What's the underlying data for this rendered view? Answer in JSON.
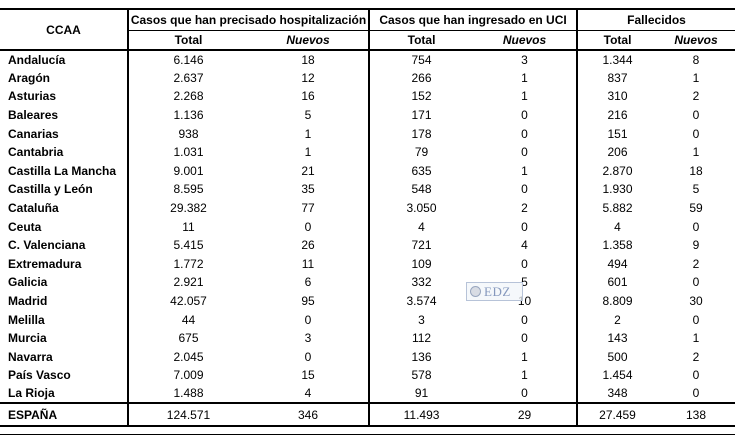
{
  "table": {
    "corner_label": "CCAA",
    "groups": [
      {
        "label": "Casos que han precisado hospitalización",
        "columns": [
          "Total",
          "Nuevos"
        ]
      },
      {
        "label": "Casos que han ingresado en UCI",
        "columns": [
          "Total",
          "Nuevos"
        ]
      },
      {
        "label": "Fallecidos",
        "columns": [
          "Total",
          "Nuevos"
        ]
      }
    ],
    "rows": [
      {
        "name": "Andalucía",
        "values": [
          "6.146",
          "18",
          "754",
          "3",
          "1.344",
          "8"
        ]
      },
      {
        "name": "Aragón",
        "values": [
          "2.637",
          "12",
          "266",
          "1",
          "837",
          "1"
        ]
      },
      {
        "name": "Asturias",
        "values": [
          "2.268",
          "16",
          "152",
          "1",
          "310",
          "2"
        ]
      },
      {
        "name": "Baleares",
        "values": [
          "1.136",
          "5",
          "171",
          "0",
          "216",
          "0"
        ]
      },
      {
        "name": "Canarias",
        "values": [
          "938",
          "1",
          "178",
          "0",
          "151",
          "0"
        ]
      },
      {
        "name": "Cantabria",
        "values": [
          "1.031",
          "1",
          "79",
          "0",
          "206",
          "1"
        ]
      },
      {
        "name": "Castilla La Mancha",
        "values": [
          "9.001",
          "21",
          "635",
          "1",
          "2.870",
          "18"
        ]
      },
      {
        "name": "Castilla y León",
        "values": [
          "8.595",
          "35",
          "548",
          "0",
          "1.930",
          "5"
        ]
      },
      {
        "name": "Cataluña",
        "values": [
          "29.382",
          "77",
          "3.050",
          "2",
          "5.882",
          "59"
        ]
      },
      {
        "name": "Ceuta",
        "values": [
          "11",
          "0",
          "4",
          "0",
          "4",
          "0"
        ]
      },
      {
        "name": "C. Valenciana",
        "values": [
          "5.415",
          "26",
          "721",
          "4",
          "1.358",
          "9"
        ]
      },
      {
        "name": "Extremadura",
        "values": [
          "1.772",
          "11",
          "109",
          "0",
          "494",
          "2"
        ]
      },
      {
        "name": "Galicia",
        "values": [
          "2.921",
          "6",
          "332",
          "5",
          "601",
          "0"
        ]
      },
      {
        "name": "Madrid",
        "values": [
          "42.057",
          "95",
          "3.574",
          "10",
          "8.809",
          "30"
        ]
      },
      {
        "name": "Melilla",
        "values": [
          "44",
          "0",
          "3",
          "0",
          "2",
          "0"
        ]
      },
      {
        "name": "Murcia",
        "values": [
          "675",
          "3",
          "112",
          "0",
          "143",
          "1"
        ]
      },
      {
        "name": "Navarra",
        "values": [
          "2.045",
          "0",
          "136",
          "1",
          "500",
          "2"
        ]
      },
      {
        "name": "País Vasco",
        "values": [
          "7.009",
          "15",
          "578",
          "1",
          "1.454",
          "0"
        ]
      },
      {
        "name": "La Rioja",
        "values": [
          "1.488",
          "4",
          "91",
          "0",
          "348",
          "0"
        ]
      }
    ],
    "total_row": {
      "name": "ESPAÑA",
      "values": [
        "124.571",
        "346",
        "11.493",
        "29",
        "27.459",
        "138"
      ]
    }
  },
  "watermark": {
    "text": "EDZ",
    "icon": "circle-icon"
  },
  "colors": {
    "text": "#000000",
    "rule": "#000000",
    "watermark_border": "#b7c3d8",
    "watermark_text": "#8598bd"
  }
}
